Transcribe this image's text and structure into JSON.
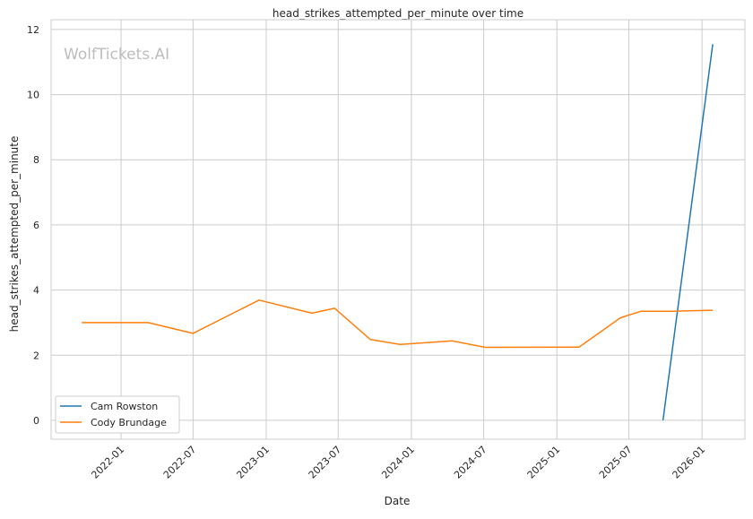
{
  "chart_data": {
    "type": "line",
    "title": "head_strikes_attempted_per_minute over time",
    "xlabel": "Date",
    "ylabel": "head_strikes_attempted_per_minute",
    "watermark": "WolfTickets.AI",
    "xlim": [
      "2021-07-09",
      "2026-04-19"
    ],
    "ylim": [
      -0.58,
      12.3
    ],
    "x_ticks": [
      "2022-01",
      "2022-07",
      "2023-01",
      "2023-07",
      "2024-01",
      "2024-07",
      "2025-01",
      "2025-07",
      "2026-01"
    ],
    "y_ticks": [
      0,
      2,
      4,
      6,
      8,
      10,
      12
    ],
    "grid": true,
    "legend_position": "bottom-left",
    "series": [
      {
        "name": "Cam Rowston",
        "color": "#1f77b4",
        "x": [
          "2025-09-25",
          "2026-01-28"
        ],
        "y": [
          0.0,
          11.55
        ]
      },
      {
        "name": "Cody Brundage",
        "color": "#ff7f0e",
        "x": [
          "2021-09-24",
          "2022-03-10",
          "2022-07-01",
          "2022-12-14",
          "2023-04-26",
          "2023-06-22",
          "2023-09-20",
          "2023-12-04",
          "2024-04-13",
          "2024-07-05",
          "2025-02-26",
          "2025-06-10",
          "2025-08-01",
          "2025-10-22",
          "2026-01-28"
        ],
        "y": [
          3.0,
          3.0,
          2.67,
          3.69,
          3.29,
          3.44,
          2.48,
          2.33,
          2.44,
          2.24,
          2.25,
          3.15,
          3.35,
          3.35,
          3.38
        ]
      }
    ]
  }
}
